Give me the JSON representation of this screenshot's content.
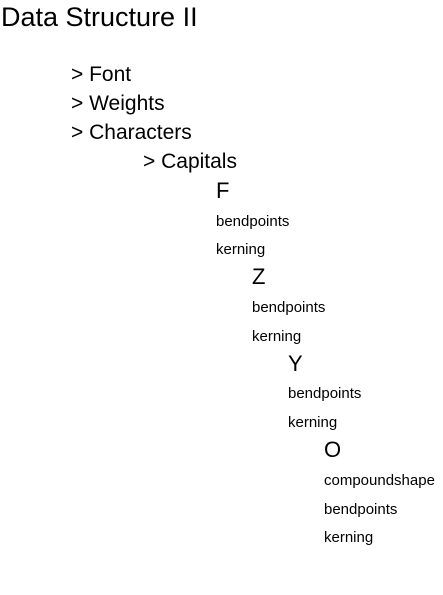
{
  "title": "Data Structure II",
  "tree": {
    "font": "> Font",
    "weights": "> Weights",
    "characters": "> Characters",
    "capitals": "> Capitals",
    "f": {
      "label": "F",
      "bendpoints": "bendpoints",
      "kerning": "kerning"
    },
    "z": {
      "label": "Z",
      "bendpoints": "bendpoints",
      "kerning": "kerning"
    },
    "y": {
      "label": "Y",
      "bendpoints": "bendpoints",
      "kerning": "kerning"
    },
    "o": {
      "label": "O",
      "compoundshape": "compoundshape",
      "bendpoints": "bendpoints",
      "kerning": "kerning"
    }
  }
}
